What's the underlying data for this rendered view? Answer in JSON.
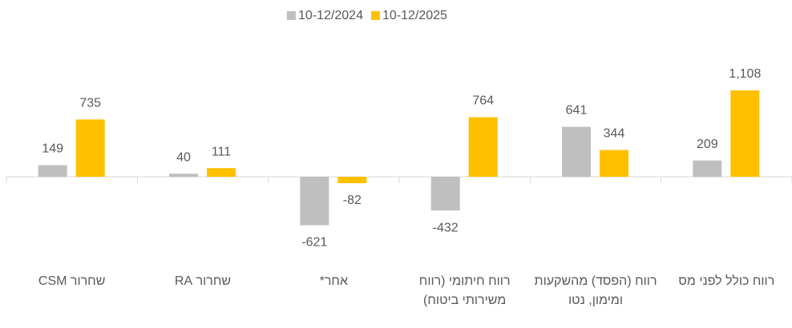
{
  "chart_data": {
    "type": "bar",
    "categories": [
      "שחרור CSM",
      "שחרור RA",
      "אחר*",
      "רווח חיתומי (רווח משירותי ביטוח)",
      "רווח (הפסד) מהשקעות ומימון, נטו",
      "רווח כולל לפני מס"
    ],
    "series": [
      {
        "name": "10-12/2024",
        "color": "#bfbfbf",
        "values": [
          149,
          40,
          -621,
          -432,
          641,
          209
        ]
      },
      {
        "name": "10-12/2025",
        "color": "#ffc000",
        "values": [
          735,
          111,
          -82,
          764,
          344,
          1108
        ],
        "value_labels": [
          "735",
          "111",
          "-82",
          "764",
          "344",
          "1,108"
        ]
      }
    ],
    "legend": "top"
  }
}
